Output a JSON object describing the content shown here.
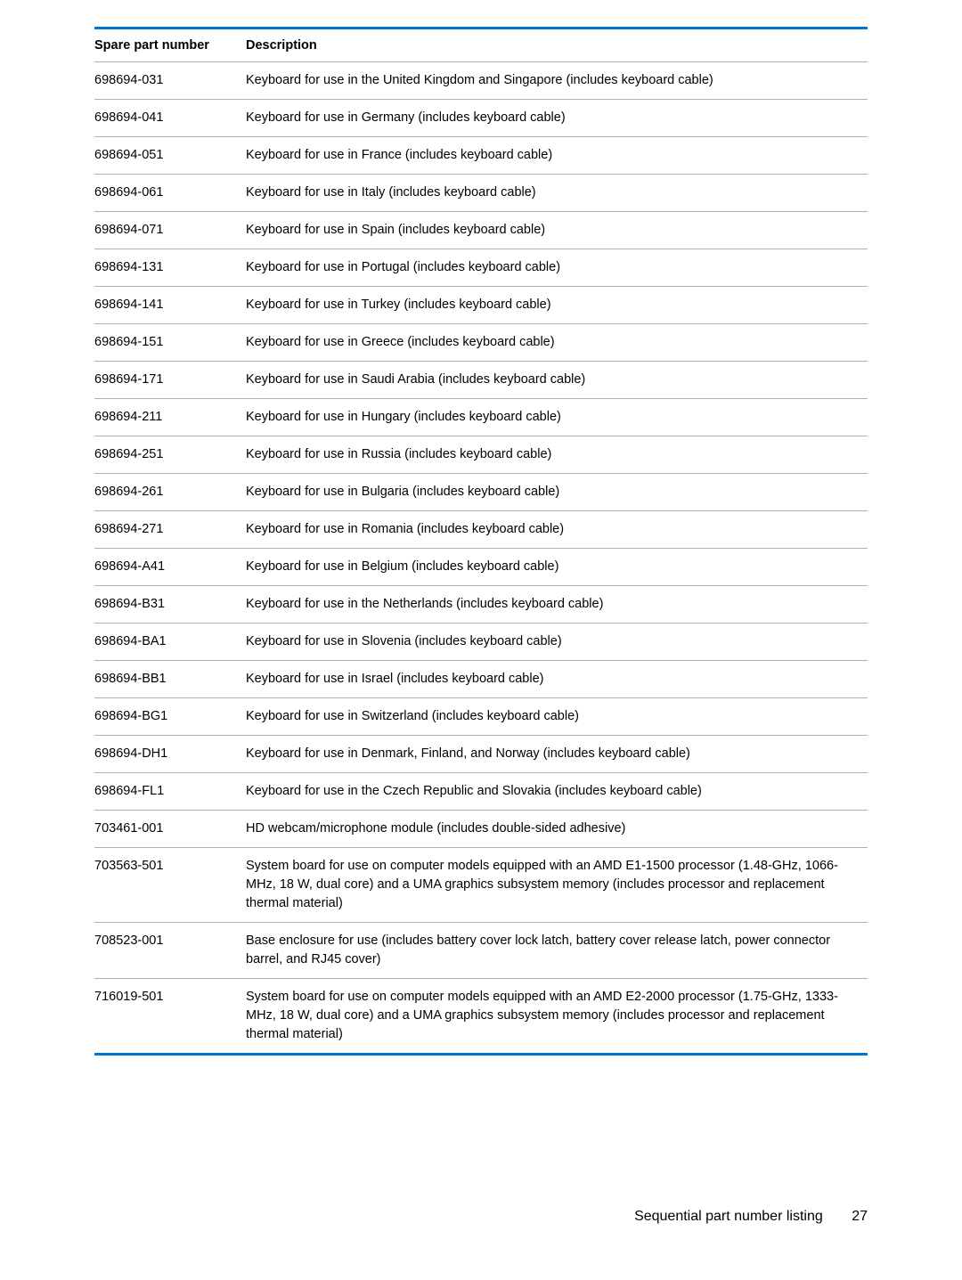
{
  "table": {
    "columns": [
      "Spare part number",
      "Description"
    ],
    "col1_width": 170,
    "border_color": "#0073cf",
    "row_border_color": "#b0b0b0",
    "header_fontsize": 14.5,
    "cell_fontsize": 14.5,
    "rows": [
      {
        "pn": "698694-031",
        "desc": "Keyboard for use in the United Kingdom and Singapore (includes keyboard cable)"
      },
      {
        "pn": "698694-041",
        "desc": "Keyboard for use in Germany (includes keyboard cable)"
      },
      {
        "pn": "698694-051",
        "desc": "Keyboard for use in France (includes keyboard cable)"
      },
      {
        "pn": "698694-061",
        "desc": "Keyboard for use in Italy (includes keyboard cable)"
      },
      {
        "pn": "698694-071",
        "desc": "Keyboard for use in Spain (includes keyboard cable)"
      },
      {
        "pn": "698694-131",
        "desc": "Keyboard for use in Portugal (includes keyboard cable)"
      },
      {
        "pn": "698694-141",
        "desc": "Keyboard for use in Turkey (includes keyboard cable)"
      },
      {
        "pn": "698694-151",
        "desc": "Keyboard for use in Greece (includes keyboard cable)"
      },
      {
        "pn": "698694-171",
        "desc": "Keyboard for use in Saudi Arabia (includes keyboard cable)"
      },
      {
        "pn": "698694-211",
        "desc": "Keyboard for use in Hungary (includes keyboard cable)"
      },
      {
        "pn": "698694-251",
        "desc": "Keyboard for use in Russia (includes keyboard cable)"
      },
      {
        "pn": "698694-261",
        "desc": "Keyboard for use in Bulgaria (includes keyboard cable)"
      },
      {
        "pn": "698694-271",
        "desc": "Keyboard for use in Romania (includes keyboard cable)"
      },
      {
        "pn": "698694-A41",
        "desc": "Keyboard for use in Belgium (includes keyboard cable)"
      },
      {
        "pn": "698694-B31",
        "desc": "Keyboard for use in the Netherlands (includes keyboard cable)"
      },
      {
        "pn": "698694-BA1",
        "desc": "Keyboard for use in Slovenia (includes keyboard cable)"
      },
      {
        "pn": "698694-BB1",
        "desc": "Keyboard for use in Israel (includes keyboard cable)"
      },
      {
        "pn": "698694-BG1",
        "desc": "Keyboard for use in Switzerland (includes keyboard cable)"
      },
      {
        "pn": "698694-DH1",
        "desc": "Keyboard for use in Denmark, Finland, and Norway (includes keyboard cable)"
      },
      {
        "pn": "698694-FL1",
        "desc": "Keyboard for use in the Czech Republic and Slovakia (includes keyboard cable)"
      },
      {
        "pn": "703461-001",
        "desc": "HD webcam/microphone module (includes double-sided adhesive)"
      },
      {
        "pn": "703563-501",
        "desc": "System board for use on computer models equipped with an AMD E1-1500 processor (1.48-GHz, 1066-MHz, 18 W, dual core) and a UMA graphics subsystem memory (includes processor and replacement thermal material)"
      },
      {
        "pn": "708523-001",
        "desc": "Base enclosure for use (includes battery cover lock latch, battery cover release latch, power connector barrel, and RJ45 cover)"
      },
      {
        "pn": "716019-501",
        "desc": "System board for use on computer models equipped with an AMD E2-2000 processor (1.75-GHz, 1333-MHz, 18 W, dual core) and a UMA graphics subsystem memory (includes processor and replacement thermal material)"
      }
    ]
  },
  "footer": {
    "section": "Sequential part number listing",
    "page": "27"
  }
}
